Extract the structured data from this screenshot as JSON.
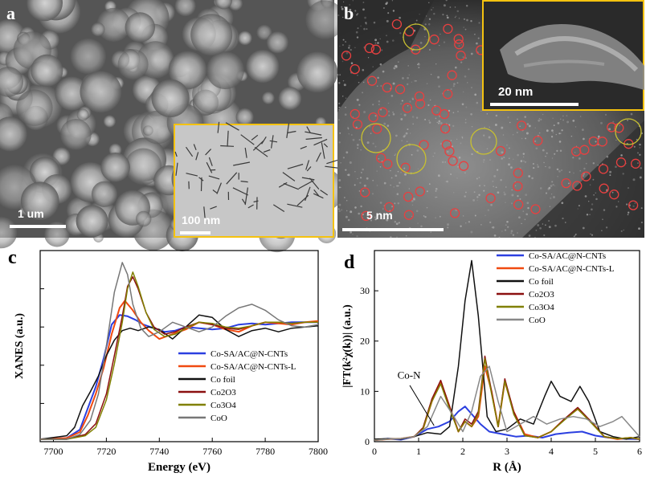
{
  "panels": {
    "a": {
      "label": "a",
      "scale": "1 um",
      "inset_scale": "100 nm"
    },
    "b": {
      "label": "b",
      "scale": "5 nm",
      "inset_scale": "20 nm"
    },
    "c": {
      "label": "c"
    },
    "d": {
      "label": "d"
    }
  },
  "colors": {
    "inset_border": "#f4c20f",
    "single_atom_circle": "#e84040",
    "cluster_circle": "#c8c030"
  },
  "chart_data": [
    {
      "type": "line",
      "panel": "c",
      "xlabel": "Energy (eV)",
      "ylabel": "XANES (a.u.)",
      "xlim": [
        7695,
        7800
      ],
      "ylim": [
        0,
        1.6
      ],
      "xticks": [
        7700,
        7720,
        7740,
        7760,
        7780,
        7800
      ],
      "legend_position": "bottom-right",
      "series": [
        {
          "name": "Co-SA/AC@N-CNTs",
          "color": "#2b3fe0",
          "x": [
            7695,
            7705,
            7710,
            7713,
            7716,
            7719,
            7722,
            7725,
            7728,
            7731,
            7734,
            7738,
            7742,
            7746,
            7750,
            7755,
            7760,
            7765,
            7770,
            7775,
            7780,
            7785,
            7790,
            7795,
            7800
          ],
          "y": [
            0.02,
            0.03,
            0.1,
            0.28,
            0.46,
            0.7,
            0.98,
            1.06,
            1.05,
            1.02,
            0.98,
            0.95,
            0.92,
            0.93,
            0.96,
            0.95,
            0.94,
            0.95,
            0.98,
            0.99,
            0.98,
            0.99,
            1.0,
            1.0,
            1.0
          ]
        },
        {
          "name": "Co-SA/AC@N-CNTs-L",
          "color": "#f04a10",
          "x": [
            7695,
            7705,
            7710,
            7713,
            7716,
            7719,
            7722,
            7725,
            7727,
            7730,
            7733,
            7736,
            7740,
            7745,
            7750,
            7755,
            7760,
            7765,
            7770,
            7775,
            7780,
            7785,
            7790,
            7795,
            7800
          ],
          "y": [
            0.02,
            0.03,
            0.08,
            0.22,
            0.4,
            0.62,
            0.9,
            1.12,
            1.18,
            1.1,
            1.0,
            0.93,
            0.86,
            0.9,
            0.94,
            1.0,
            0.98,
            0.94,
            0.92,
            0.97,
            1.0,
            0.99,
            0.98,
            1.0,
            1.01
          ]
        },
        {
          "name": "Co foil",
          "color": "#111111",
          "x": [
            7695,
            7705,
            7708,
            7711,
            7714,
            7717,
            7720,
            7723,
            7726,
            7729,
            7732,
            7736,
            7740,
            7745,
            7750,
            7755,
            7760,
            7765,
            7770,
            7775,
            7780,
            7785,
            7790,
            7795,
            7800
          ],
          "y": [
            0.02,
            0.05,
            0.12,
            0.3,
            0.42,
            0.55,
            0.72,
            0.85,
            0.93,
            0.95,
            0.93,
            0.96,
            0.94,
            0.86,
            0.96,
            1.06,
            1.04,
            0.94,
            0.88,
            0.93,
            0.95,
            0.92,
            0.95,
            0.96,
            0.97
          ]
        },
        {
          "name": "Co2O3",
          "color": "#8b1010",
          "x": [
            7695,
            7705,
            7712,
            7716,
            7720,
            7723,
            7726,
            7728,
            7730,
            7732,
            7735,
            7738,
            7742,
            7746,
            7750,
            7755,
            7760,
            7765,
            7770,
            7775,
            7780,
            7785,
            7790,
            7795,
            7800
          ],
          "y": [
            0.02,
            0.02,
            0.06,
            0.15,
            0.4,
            0.72,
            1.05,
            1.3,
            1.38,
            1.28,
            1.08,
            0.96,
            0.9,
            0.92,
            0.96,
            1.0,
            0.98,
            0.95,
            0.94,
            0.97,
            1.0,
            1.0,
            0.99,
            1.0,
            1.0
          ]
        },
        {
          "name": "Co3O4",
          "color": "#808000",
          "x": [
            7695,
            7705,
            7712,
            7716,
            7720,
            7723,
            7726,
            7728,
            7730,
            7732,
            7735,
            7738,
            7742,
            7746,
            7750,
            7755,
            7760,
            7765,
            7770,
            7775,
            7780,
            7785,
            7790,
            7795,
            7800
          ],
          "y": [
            0.02,
            0.02,
            0.05,
            0.12,
            0.35,
            0.65,
            1.0,
            1.28,
            1.42,
            1.3,
            1.08,
            0.94,
            0.88,
            0.9,
            0.95,
            1.0,
            0.99,
            0.96,
            0.95,
            0.97,
            1.0,
            1.0,
            0.99,
            1.0,
            1.0
          ]
        },
        {
          "name": "CoO",
          "color": "#777777",
          "x": [
            7695,
            7705,
            7710,
            7714,
            7717,
            7720,
            7723,
            7726,
            7728,
            7730,
            7733,
            7736,
            7740,
            7745,
            7750,
            7755,
            7760,
            7765,
            7770,
            7775,
            7780,
            7785,
            7790,
            7795,
            7800
          ],
          "y": [
            0.02,
            0.02,
            0.06,
            0.18,
            0.4,
            0.8,
            1.25,
            1.5,
            1.4,
            1.15,
            0.95,
            0.88,
            0.92,
            1.0,
            0.96,
            0.92,
            0.96,
            1.05,
            1.12,
            1.15,
            1.1,
            1.02,
            0.97,
            0.96,
            0.98
          ]
        }
      ]
    },
    {
      "type": "line",
      "panel": "d",
      "xlabel": "R (Å)",
      "ylabel": "|FT(k²χ(k))| (a.u.)",
      "xlim": [
        0,
        6
      ],
      "ylim": [
        0,
        38
      ],
      "xticks": [
        0,
        1,
        2,
        3,
        4,
        5,
        6
      ],
      "yticks": [
        0,
        10,
        20,
        30
      ],
      "legend_position": "top-right",
      "annotation": "Co-N",
      "series": [
        {
          "name": "Co-SA/AC@N-CNTs",
          "color": "#2b3fe0",
          "x": [
            0,
            0.3,
            0.6,
            0.9,
            1.2,
            1.45,
            1.7,
            1.9,
            2.05,
            2.2,
            2.4,
            2.6,
            2.9,
            3.2,
            3.5,
            3.8,
            4.1,
            4.4,
            4.7,
            5.0,
            5.3,
            5.6,
            6.0
          ],
          "y": [
            0.3,
            0.6,
            0.4,
            1.0,
            2.5,
            3.0,
            4.0,
            6.0,
            7.0,
            5.5,
            3.5,
            2.0,
            1.5,
            1.0,
            1.2,
            0.8,
            1.5,
            1.8,
            2.0,
            1.2,
            0.8,
            0.6,
            0.5
          ]
        },
        {
          "name": "Co-SA/AC@N-CNTs-L",
          "color": "#f04a10",
          "x": [
            0,
            0.3,
            0.6,
            0.9,
            1.1,
            1.3,
            1.5,
            1.7,
            1.9,
            2.05,
            2.2,
            2.35,
            2.5,
            2.65,
            2.8,
            2.95,
            3.15,
            3.4,
            3.7,
            4.0,
            4.3,
            4.6,
            4.9,
            5.2,
            5.5,
            5.8,
            6.0
          ],
          "y": [
            0.3,
            0.5,
            0.6,
            1.0,
            2.5,
            8.0,
            12.0,
            7.0,
            2.0,
            4.0,
            3.0,
            5.0,
            15.0,
            10.0,
            3.0,
            12.0,
            6.0,
            1.5,
            0.8,
            2.0,
            4.5,
            6.5,
            4.0,
            1.0,
            0.5,
            0.8,
            0.5
          ]
        },
        {
          "name": "Co foil",
          "color": "#111111",
          "x": [
            0,
            0.3,
            0.6,
            0.9,
            1.2,
            1.5,
            1.7,
            1.9,
            2.05,
            2.2,
            2.35,
            2.55,
            2.75,
            3.0,
            3.3,
            3.6,
            3.85,
            4.0,
            4.2,
            4.45,
            4.65,
            4.85,
            5.1,
            5.4,
            5.7,
            6.0
          ],
          "y": [
            0.5,
            0.6,
            0.5,
            1.0,
            1.8,
            1.5,
            3.0,
            15.0,
            28.0,
            36.0,
            25.0,
            5.0,
            2.0,
            2.5,
            4.5,
            3.5,
            9.0,
            12.0,
            9.0,
            8.0,
            11.0,
            8.0,
            2.0,
            1.0,
            0.5,
            1.0
          ]
        },
        {
          "name": "Co2O3",
          "color": "#8b1010",
          "x": [
            0,
            0.3,
            0.6,
            0.9,
            1.1,
            1.3,
            1.5,
            1.7,
            1.9,
            2.05,
            2.2,
            2.35,
            2.5,
            2.65,
            2.8,
            2.95,
            3.15,
            3.4,
            3.7,
            4.0,
            4.3,
            4.6,
            4.9,
            5.2,
            5.5,
            5.8,
            6.0
          ],
          "y": [
            0.3,
            0.5,
            0.6,
            1.0,
            2.8,
            8.5,
            12.2,
            7.0,
            2.0,
            4.5,
            3.5,
            6.0,
            17.0,
            10.0,
            3.0,
            12.5,
            6.0,
            1.2,
            0.8,
            2.0,
            4.5,
            6.8,
            4.0,
            1.0,
            0.6,
            0.8,
            0.5
          ]
        },
        {
          "name": "Co3O4",
          "color": "#808000",
          "x": [
            0,
            0.3,
            0.6,
            0.9,
            1.1,
            1.3,
            1.5,
            1.7,
            1.9,
            2.05,
            2.2,
            2.35,
            2.5,
            2.65,
            2.8,
            2.95,
            3.15,
            3.4,
            3.7,
            4.0,
            4.3,
            4.6,
            4.9,
            5.2,
            5.5,
            5.8,
            6.0
          ],
          "y": [
            0.3,
            0.5,
            0.6,
            1.0,
            2.5,
            8.0,
            11.5,
            6.5,
            2.0,
            4.0,
            3.0,
            5.5,
            16.5,
            9.5,
            3.0,
            12.0,
            5.5,
            1.2,
            0.8,
            2.0,
            4.3,
            6.5,
            3.8,
            1.0,
            0.6,
            0.8,
            0.5
          ]
        },
        {
          "name": "CoO",
          "color": "#888888",
          "x": [
            0,
            0.3,
            0.6,
            0.9,
            1.2,
            1.5,
            1.8,
            2.0,
            2.2,
            2.4,
            2.6,
            2.8,
            3.0,
            3.3,
            3.6,
            3.9,
            4.2,
            4.5,
            4.8,
            5.1,
            5.4,
            5.6,
            5.8,
            6.0
          ],
          "y": [
            0.3,
            0.5,
            0.6,
            1.0,
            3.0,
            9.0,
            5.0,
            2.0,
            6.0,
            13.0,
            15.0,
            8.0,
            2.0,
            3.5,
            5.0,
            3.5,
            4.5,
            5.0,
            4.5,
            3.0,
            4.0,
            5.0,
            3.0,
            1.0
          ]
        }
      ]
    }
  ]
}
